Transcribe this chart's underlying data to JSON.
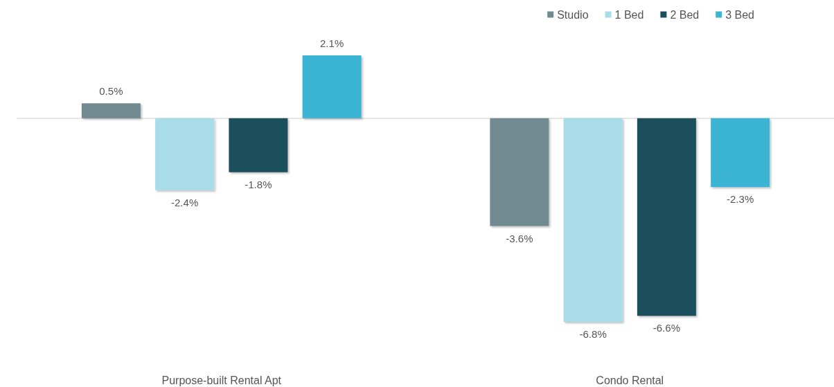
{
  "chart_data": {
    "type": "bar",
    "categories": [
      "Purpose-built Rental Apt",
      "Condo Rental"
    ],
    "series": [
      {
        "name": "Studio",
        "color": "#6f8a90",
        "values": [
          0.5,
          -3.6
        ],
        "value_labels": [
          "0.5%",
          "-3.6%"
        ]
      },
      {
        "name": "1 Bed",
        "color": "#a9dce9",
        "values": [
          -2.4,
          -6.8
        ],
        "value_labels": [
          "-2.4%",
          "-6.8%"
        ]
      },
      {
        "name": "2 Bed",
        "color": "#1c4f5c",
        "values": [
          -1.8,
          -6.6
        ],
        "value_labels": [
          "-1.8%",
          "-6.6%"
        ]
      },
      {
        "name": "3 Bed",
        "color": "#3bb5d3",
        "values": [
          2.1,
          -2.3
        ],
        "value_labels": [
          "2.1%",
          "-2.3%"
        ]
      }
    ],
    "legend": "top right",
    "grid": false
  }
}
